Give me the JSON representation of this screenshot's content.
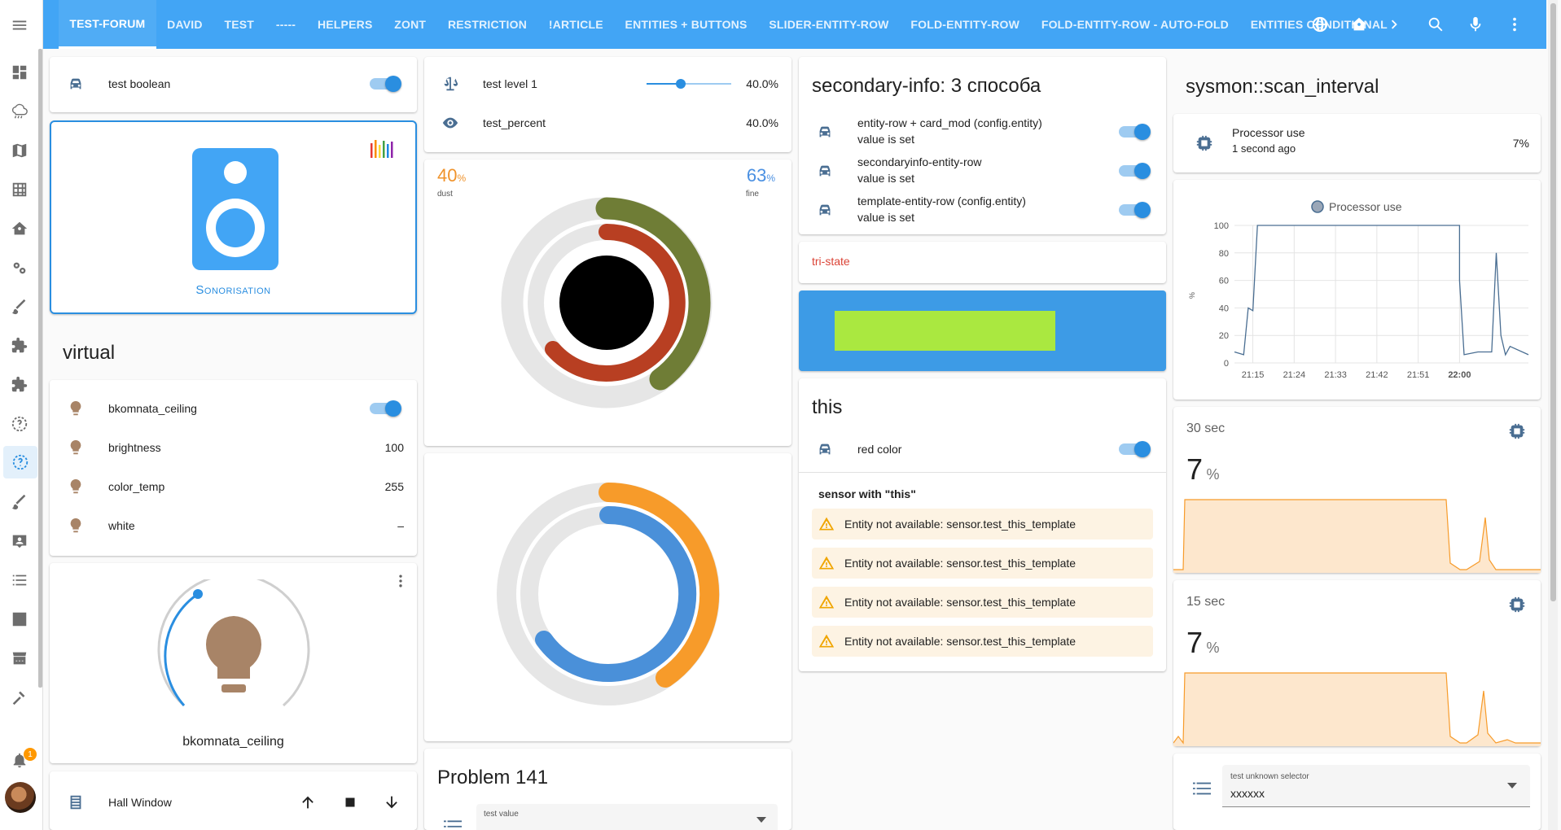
{
  "header": {
    "tabs": [
      "TEST-FORUM",
      "DAVID",
      "TEST",
      "-----",
      "HELPERS",
      "ZONT",
      "RESTRICTION",
      "!ARTICLE",
      "ENTITIES + BUTTONS",
      "SLIDER-ENTITY-ROW",
      "FOLD-ENTITY-ROW",
      "FOLD-ENTITY-ROW - AUTO-FOLD",
      "ENTITIES CONDITIONAL"
    ],
    "active_tab": "TEST-FORUM",
    "icons": [
      "globe-icon",
      "home-icon",
      "chevron-right-icon",
      "search-icon",
      "microphone-icon",
      "more-vertical-icon"
    ]
  },
  "sidebar": {
    "icons": [
      "menu-icon",
      "dashboard-icon",
      "weather-icon",
      "map-icon",
      "grid-icon",
      "home-flower-icon",
      "settings-cogs-icon",
      "brush-icon",
      "puzzle-icon",
      "puzzle-2-icon",
      "help-circle-icon",
      "help-circle-active-icon",
      "brush-2-icon",
      "account-box-icon",
      "list-icon",
      "chart-icon",
      "hacs-store-icon",
      "hammer-icon",
      "bell-icon"
    ],
    "notification_count": "1"
  },
  "col1": {
    "test_boolean": "test boolean",
    "sonorisation": "Sonorisation",
    "virtual_title": "virtual",
    "virtual_rows": [
      {
        "name": "bkomnata_ceiling",
        "value": ""
      },
      {
        "name": "brightness",
        "value": "100"
      },
      {
        "name": "color_temp",
        "value": "255"
      },
      {
        "name": "white",
        "value": "–"
      }
    ],
    "light_name": "bkomnata_ceiling",
    "hall_window": "Hall Window"
  },
  "col2": {
    "level_name": "test level 1",
    "level_value": "40.0%",
    "level_fraction": 0.4,
    "percent_name": "test_percent",
    "percent_value": "40.0%",
    "dust_value": "40",
    "dust_unit": "%",
    "dust_label": "dust",
    "fine_value": "63",
    "fine_unit": "%",
    "fine_label": "fine",
    "problem_title": "Problem 141",
    "test_value_label": "test value"
  },
  "col3": {
    "secondary_title": "secondary-info: 3 способа",
    "secondary_rows": [
      {
        "name": "entity-row + card_mod (config.entity)",
        "info": "value is set"
      },
      {
        "name": "secondaryinfo-entity-row",
        "info": "value is set"
      },
      {
        "name": "template-entity-row (config.entity)",
        "info": "value is set"
      }
    ],
    "tristate": "tri-state",
    "this_title": "this",
    "red_color": "red color",
    "sensor_this": "sensor with \"this\"",
    "warnings": [
      "Entity not available: sensor.test_this_template",
      "Entity not available: sensor.test_this_template",
      "Entity not available: sensor.test_this_template",
      "Entity not available: sensor.test_this_template"
    ],
    "colors": {
      "tristate": "#db4437",
      "panel": "#3d9be6",
      "bar": "#aae840"
    }
  },
  "col4": {
    "title": "sysmon::scan_interval",
    "processor_name": "Processor use",
    "processor_time": "1 second ago",
    "processor_value": "7%",
    "history_legend": "Processor use",
    "yaxis_unit": "%",
    "yticks": [
      "100",
      "80",
      "60",
      "40",
      "20",
      "0"
    ],
    "xticks": [
      "21:15",
      "21:24",
      "21:33",
      "21:42",
      "21:51",
      "22:00"
    ],
    "g1_title": "30 sec",
    "g1_value": "7",
    "g1_unit": "%",
    "g2_title": "15 sec",
    "g2_value": "7",
    "g2_unit": "%",
    "selector_label": "test unknown selector",
    "selector_value": "xxxxxx"
  },
  "chart_data": {
    "type": "line",
    "title": "",
    "series": [
      {
        "name": "Processor use",
        "x": [
          "21:11",
          "21:13",
          "21:14",
          "21:15",
          "21:16",
          "21:20",
          "22:00",
          "22:00",
          "22:01",
          "22:04",
          "22:07",
          "22:08",
          "22:09",
          "22:10",
          "22:11",
          "22:15"
        ],
        "values": [
          8,
          6,
          40,
          38,
          100,
          100,
          100,
          60,
          6,
          8,
          8,
          80,
          20,
          6,
          12,
          6
        ]
      }
    ],
    "xlabel": "",
    "ylabel": "%",
    "ylim": [
      0,
      100
    ],
    "grid": true,
    "legend": "top"
  }
}
